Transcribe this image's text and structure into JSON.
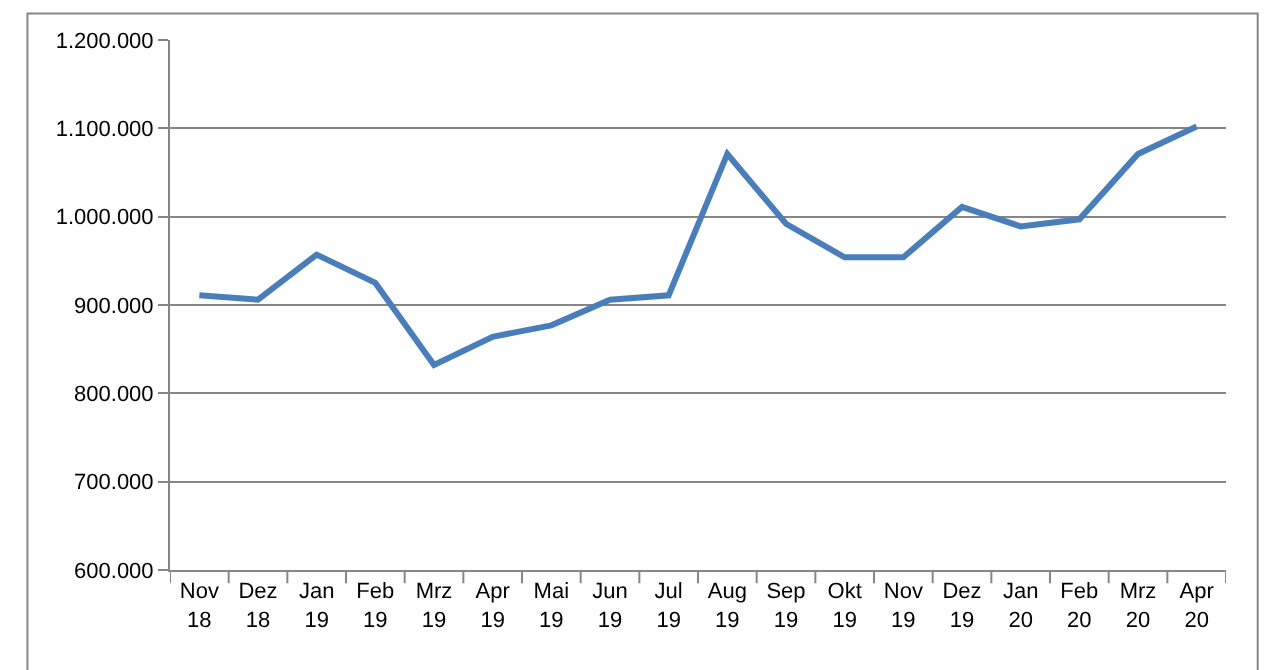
{
  "chart_data": {
    "type": "line",
    "categories": [
      "Nov\n18",
      "Dez\n18",
      "Jan\n19",
      "Feb\n19",
      "Mrz\n19",
      "Apr\n19",
      "Mai\n19",
      "Jun\n19",
      "Jul\n19",
      "Aug\n19",
      "Sep\n19",
      "Okt\n19",
      "Nov\n19",
      "Dez\n19",
      "Jan\n20",
      "Feb\n20",
      "Mrz\n20",
      "Apr\n20"
    ],
    "series": [
      {
        "color": "#4a7ebb",
        "values": [
          911000,
          906000,
          957000,
          925000,
          832000,
          864000,
          877000,
          906000,
          911000,
          1071000,
          992000,
          954000,
          954000,
          1011000,
          989000,
          997000,
          1071000,
          1102000
        ]
      }
    ],
    "ylim": [
      600000,
      1200000
    ],
    "yticks": [
      {
        "value": 600000,
        "label": "600.000"
      },
      {
        "value": 700000,
        "label": "700.000"
      },
      {
        "value": 800000,
        "label": "800.000"
      },
      {
        "value": 900000,
        "label": "900.000"
      },
      {
        "value": 1000000,
        "label": "1.000.000"
      },
      {
        "value": 1100000,
        "label": "1.100.000"
      },
      {
        "value": 1200000,
        "label": "1.200.000"
      }
    ],
    "grid": "y",
    "marker": "none",
    "line_style": "solid"
  }
}
